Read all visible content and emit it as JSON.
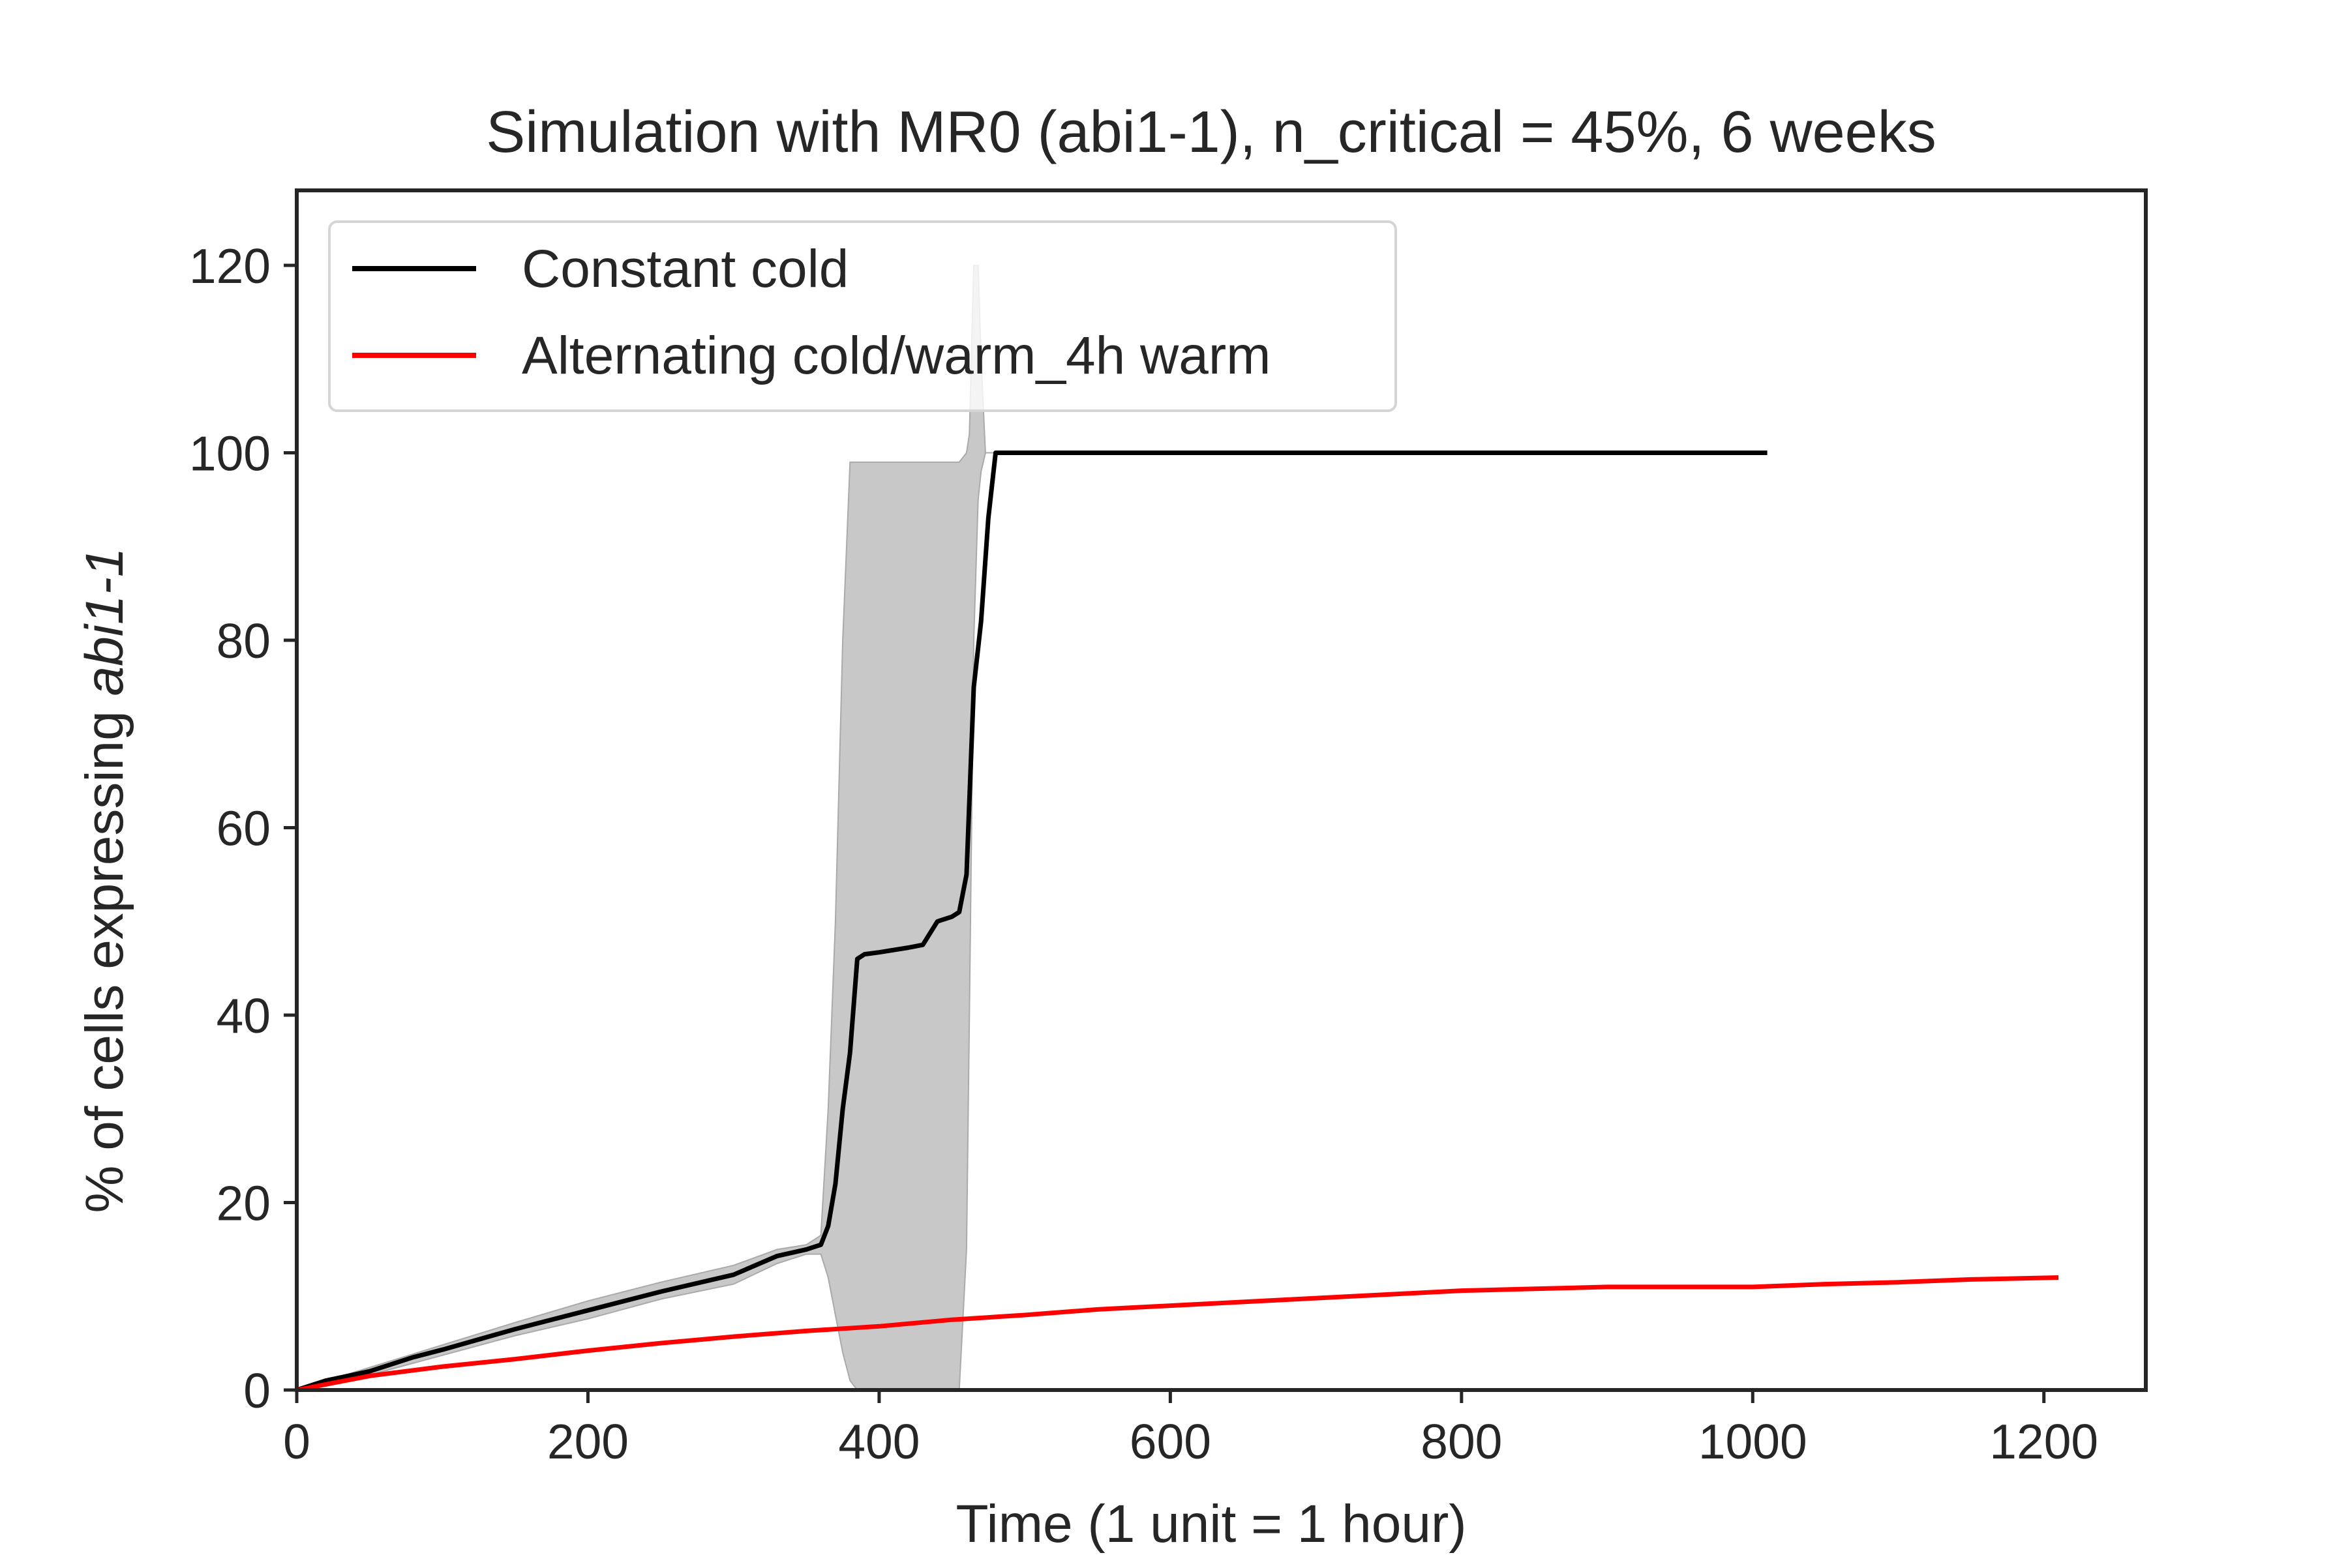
{
  "chart_data": {
    "type": "line",
    "title": "Simulation with MR0 (abi1-1), n_critical = 45%, 6 weeks",
    "xlabel": "Time (1 unit = 1 hour)",
    "ylabel_prefix": "% of cells expressing ",
    "ylabel_italic": "abi1-1",
    "xlim": [
      0,
      1270
    ],
    "ylim": [
      0,
      128
    ],
    "xticks": [
      0,
      200,
      400,
      600,
      800,
      1000,
      1200
    ],
    "yticks": [
      0,
      20,
      40,
      60,
      80,
      100,
      120
    ],
    "grid": false,
    "legend_position": "top-left",
    "series": [
      {
        "name": "Constant cold",
        "color": "#000000",
        "x": [
          0,
          20,
          50,
          80,
          100,
          150,
          200,
          250,
          300,
          330,
          350,
          360,
          365,
          370,
          375,
          380,
          385,
          390,
          400,
          420,
          430,
          440,
          450,
          455,
          460,
          465,
          470,
          475,
          480,
          485,
          500,
          600,
          700,
          800,
          900,
          1010
        ],
        "y": [
          0,
          1,
          2,
          3.5,
          4.3,
          6.5,
          8.5,
          10.5,
          12.3,
          14.3,
          15,
          15.5,
          17.5,
          22,
          30,
          36,
          46,
          46.5,
          46.7,
          47.2,
          47.5,
          50,
          50.5,
          51,
          55,
          75,
          82,
          93,
          100,
          100,
          100,
          100,
          100,
          100,
          100,
          100
        ]
      },
      {
        "name": "Alternating cold/warm_4h warm",
        "color": "#ff0000",
        "x": [
          0,
          50,
          100,
          150,
          200,
          250,
          300,
          350,
          400,
          450,
          500,
          550,
          600,
          650,
          700,
          750,
          800,
          850,
          900,
          950,
          1000,
          1050,
          1100,
          1150,
          1210
        ],
        "y": [
          0,
          1.5,
          2.5,
          3.3,
          4.2,
          5,
          5.7,
          6.3,
          6.8,
          7.5,
          8,
          8.6,
          9,
          9.4,
          9.8,
          10.2,
          10.6,
          10.8,
          11,
          11,
          11,
          11.3,
          11.5,
          11.8,
          12
        ]
      }
    ],
    "band": {
      "series": "Constant cold",
      "color": "#c8c8c8",
      "x": [
        0,
        50,
        100,
        150,
        200,
        250,
        300,
        330,
        350,
        360,
        365,
        370,
        375,
        380,
        385,
        390,
        440,
        455,
        460,
        462,
        465,
        468,
        470,
        473,
        476,
        480
      ],
      "lower": [
        0,
        1.6,
        3.7,
        5.8,
        7.6,
        9.7,
        11.3,
        13.5,
        14.5,
        14.5,
        12,
        8,
        4,
        1,
        0,
        0,
        0,
        0,
        15,
        40,
        80,
        95,
        98,
        100,
        100,
        100
      ],
      "upper": [
        0,
        2.4,
        4.8,
        7.2,
        9.5,
        11.5,
        13.3,
        15,
        15.5,
        16.5,
        30,
        50,
        80,
        99,
        99,
        99,
        99,
        99,
        100,
        102,
        120,
        120,
        110,
        100,
        100,
        100
      ]
    }
  }
}
